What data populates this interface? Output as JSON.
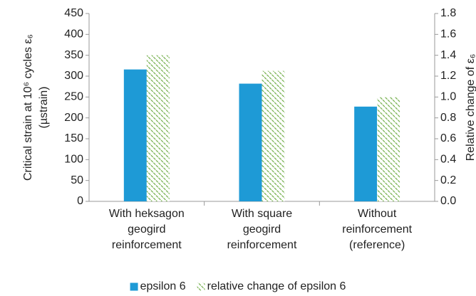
{
  "chart_data": {
    "type": "bar",
    "y_label": [
      "Critical strain at 10⁶ cycles ε₆",
      "(µstrain)"
    ],
    "y2_label": "Relative change of ε₆",
    "categories": [
      [
        "With heksagon",
        "geogird",
        "reinforcement"
      ],
      [
        "With square",
        "geogird",
        "reinforcement"
      ],
      [
        "Without",
        "reinforcement",
        "(reference)"
      ]
    ],
    "series": [
      {
        "name": "epsilon 6",
        "color": "#1e9ad6",
        "values": [
          316,
          282,
          227
        ]
      },
      {
        "name": "relative change of epsilon 6",
        "color": "#70ad47",
        "pattern": "hatch",
        "axis": "y2",
        "values": [
          1.4,
          1.25,
          1.0
        ]
      }
    ],
    "ylim": [
      0,
      450
    ],
    "yticks": [
      0,
      50,
      100,
      150,
      200,
      250,
      300,
      350,
      400,
      450
    ],
    "y2lim": [
      0,
      1.8
    ],
    "y2ticks": [
      {
        "value": 0,
        "label": "0.0"
      },
      0.2,
      0.4,
      0.6,
      0.8,
      {
        "value": 1,
        "label": "1.0"
      },
      1.2,
      1.4,
      1.6,
      1.8
    ],
    "legend": "bottom"
  }
}
